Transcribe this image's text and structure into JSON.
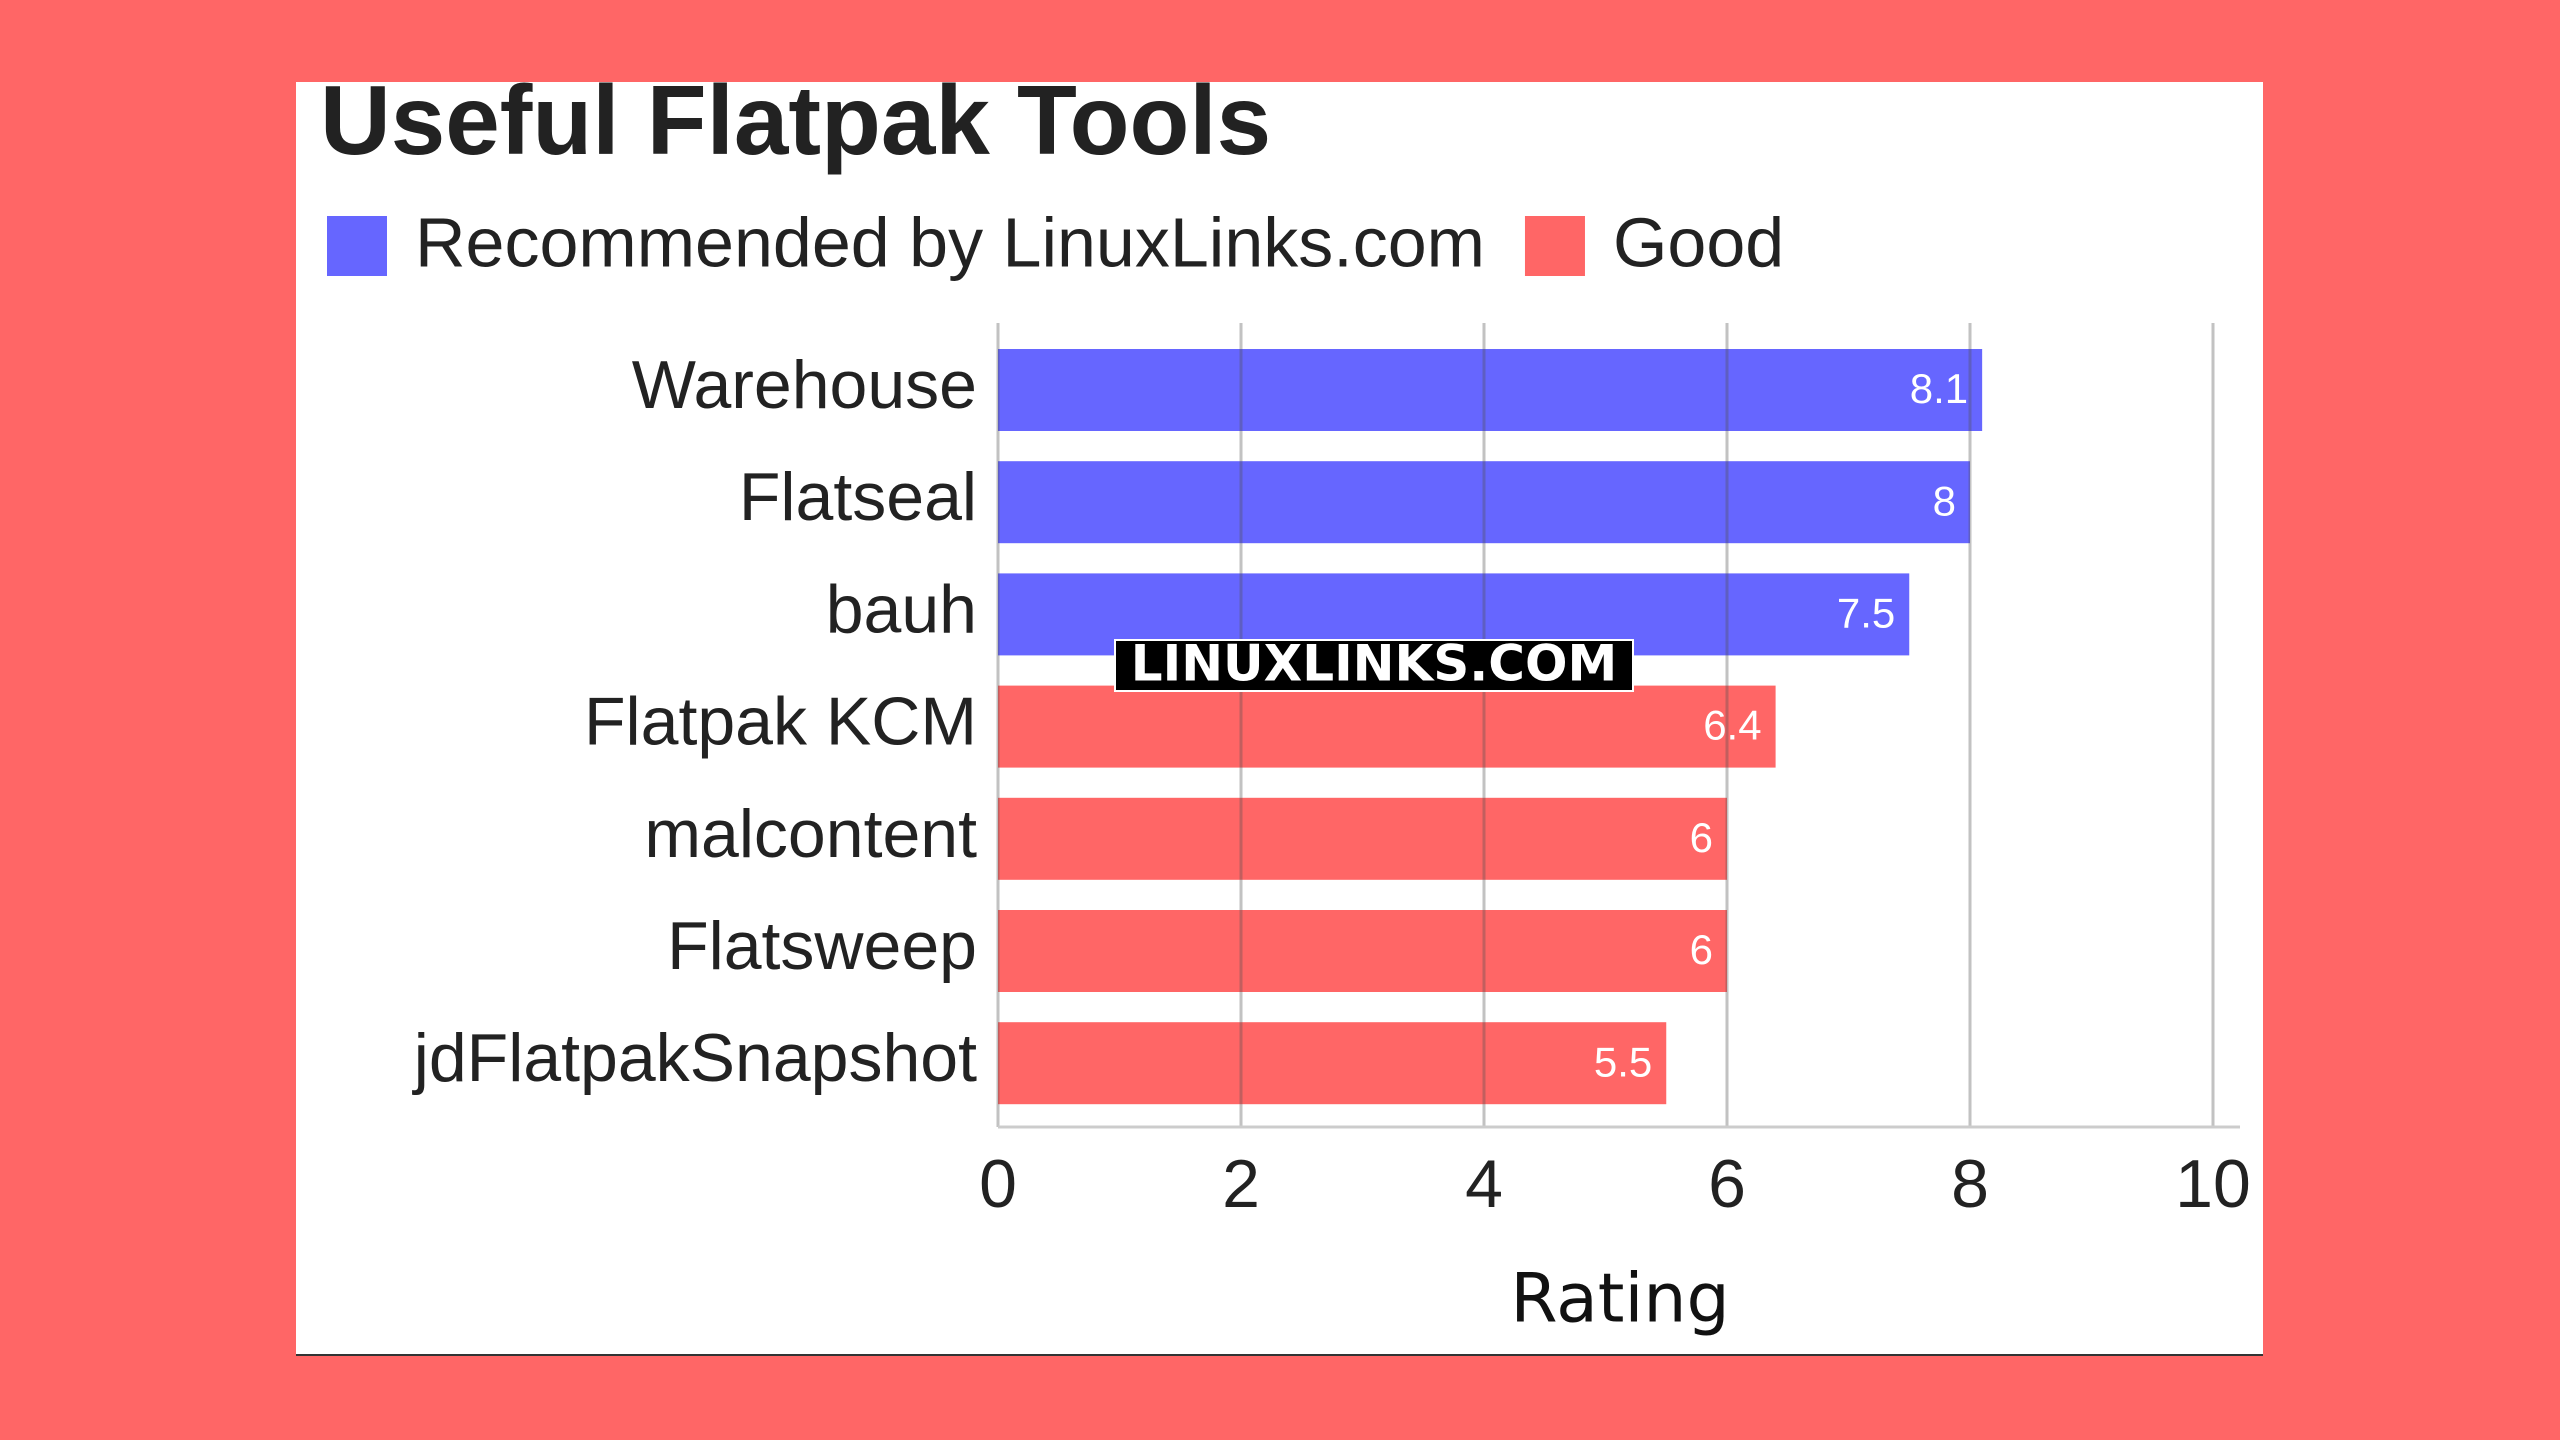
{
  "chart_data": {
    "type": "bar",
    "orientation": "horizontal",
    "title": "Useful Flatpak Tools",
    "categories": [
      "Warehouse",
      "Flatseal",
      "bauh",
      "Flatpak KCM",
      "malcontent",
      "Flatsweep",
      "jdFlatpakSnapshot"
    ],
    "series": [
      {
        "name": "Recommended by LinuxLinks.com",
        "color": "#6666ff",
        "values": [
          8.1,
          8,
          7.5,
          null,
          null,
          null,
          null
        ]
      },
      {
        "name": "Good",
        "color": "#ff6666",
        "values": [
          null,
          null,
          null,
          6.4,
          6,
          6,
          5.5
        ]
      }
    ],
    "xlim": [
      0,
      10
    ],
    "xticks": [
      0,
      2,
      4,
      6,
      8,
      10
    ],
    "x_label": "Rating",
    "grid": true,
    "watermark": "LINUXLINKS.COM"
  }
}
